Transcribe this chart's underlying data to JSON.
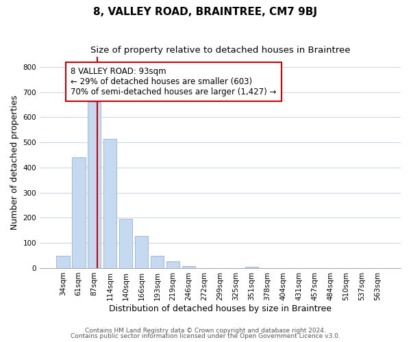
{
  "title": "8, VALLEY ROAD, BRAINTREE, CM7 9BJ",
  "subtitle": "Size of property relative to detached houses in Braintree",
  "xlabel": "Distribution of detached houses by size in Braintree",
  "ylabel": "Number of detached properties",
  "bar_labels": [
    "34sqm",
    "61sqm",
    "87sqm",
    "114sqm",
    "140sqm",
    "166sqm",
    "193sqm",
    "219sqm",
    "246sqm",
    "272sqm",
    "299sqm",
    "325sqm",
    "351sqm",
    "378sqm",
    "404sqm",
    "431sqm",
    "457sqm",
    "484sqm",
    "510sqm",
    "537sqm",
    "563sqm"
  ],
  "bar_values": [
    50,
    440,
    660,
    515,
    197,
    127,
    50,
    27,
    8,
    0,
    0,
    0,
    5,
    0,
    0,
    0,
    0,
    0,
    0,
    0,
    0
  ],
  "bar_color": "#c5d9f0",
  "bar_edge_color": "#a0b8d8",
  "vline_x": 2.18,
  "vline_color": "#cc0000",
  "annotation_text": "8 VALLEY ROAD: 93sqm\n← 29% of detached houses are smaller (603)\n70% of semi-detached houses are larger (1,427) →",
  "annotation_box_color": "white",
  "annotation_box_edge": "#cc0000",
  "ylim": [
    0,
    840
  ],
  "yticks": [
    0,
    100,
    200,
    300,
    400,
    500,
    600,
    700,
    800
  ],
  "footer_line1": "Contains HM Land Registry data © Crown copyright and database right 2024.",
  "footer_line2": "Contains public sector information licensed under the Open Government Licence v3.0.",
  "title_fontsize": 11,
  "subtitle_fontsize": 9.5,
  "axis_label_fontsize": 9,
  "tick_fontsize": 7.5,
  "annotation_fontsize": 8.5,
  "footer_fontsize": 6.5
}
